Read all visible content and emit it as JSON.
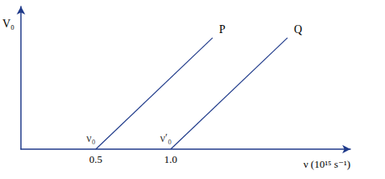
{
  "chart_data": {
    "type": "line",
    "xlabel": "ν (10¹⁵ s⁻¹)",
    "ylabel": "V₀",
    "xlim": [
      0,
      2.2
    ],
    "xticks": [
      0.5,
      {
        "value": 1,
        "label": "1.0"
      }
    ],
    "ylim": [
      0,
      1
    ],
    "tick_labels": "x",
    "grid": false,
    "series": [
      {
        "name": "P",
        "color": "#1f3a8a",
        "x": [
          0.5,
          1.28
        ],
        "values": [
          0,
          0.78
        ]
      },
      {
        "name": "Q",
        "color": "#1f3a8a",
        "x": [
          1.0,
          1.78
        ],
        "values": [
          0,
          0.78
        ]
      }
    ],
    "annotations": [
      {
        "text": "ν₀",
        "x": 0.5,
        "y": 0
      },
      {
        "text": "ν′₀",
        "x": 1.0,
        "y": 0
      }
    ]
  }
}
